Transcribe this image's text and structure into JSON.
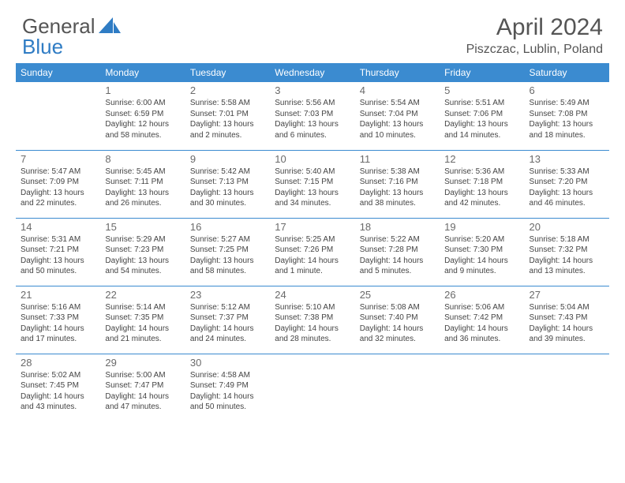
{
  "logo": {
    "part1": "General",
    "part2": "Blue",
    "icon_color": "#2f7cc4"
  },
  "title": "April 2024",
  "location": "Piszczac, Lublin, Poland",
  "colors": {
    "header_bg": "#3b8bd0",
    "header_text": "#ffffff",
    "cell_border": "#3b8bd0",
    "page_bg": "#ffffff",
    "text": "#444444",
    "title_text": "#555555"
  },
  "fonts": {
    "title_size": 30,
    "location_size": 16,
    "dayhead_size": 12,
    "daynum_size": 13,
    "body_size": 10
  },
  "day_headers": [
    "Sunday",
    "Monday",
    "Tuesday",
    "Wednesday",
    "Thursday",
    "Friday",
    "Saturday"
  ],
  "weeks": [
    [
      {
        "n": "",
        "sr": "",
        "ss": "",
        "dl": ""
      },
      {
        "n": "1",
        "sr": "Sunrise: 6:00 AM",
        "ss": "Sunset: 6:59 PM",
        "dl": "Daylight: 12 hours and 58 minutes."
      },
      {
        "n": "2",
        "sr": "Sunrise: 5:58 AM",
        "ss": "Sunset: 7:01 PM",
        "dl": "Daylight: 13 hours and 2 minutes."
      },
      {
        "n": "3",
        "sr": "Sunrise: 5:56 AM",
        "ss": "Sunset: 7:03 PM",
        "dl": "Daylight: 13 hours and 6 minutes."
      },
      {
        "n": "4",
        "sr": "Sunrise: 5:54 AM",
        "ss": "Sunset: 7:04 PM",
        "dl": "Daylight: 13 hours and 10 minutes."
      },
      {
        "n": "5",
        "sr": "Sunrise: 5:51 AM",
        "ss": "Sunset: 7:06 PM",
        "dl": "Daylight: 13 hours and 14 minutes."
      },
      {
        "n": "6",
        "sr": "Sunrise: 5:49 AM",
        "ss": "Sunset: 7:08 PM",
        "dl": "Daylight: 13 hours and 18 minutes."
      }
    ],
    [
      {
        "n": "7",
        "sr": "Sunrise: 5:47 AM",
        "ss": "Sunset: 7:09 PM",
        "dl": "Daylight: 13 hours and 22 minutes."
      },
      {
        "n": "8",
        "sr": "Sunrise: 5:45 AM",
        "ss": "Sunset: 7:11 PM",
        "dl": "Daylight: 13 hours and 26 minutes."
      },
      {
        "n": "9",
        "sr": "Sunrise: 5:42 AM",
        "ss": "Sunset: 7:13 PM",
        "dl": "Daylight: 13 hours and 30 minutes."
      },
      {
        "n": "10",
        "sr": "Sunrise: 5:40 AM",
        "ss": "Sunset: 7:15 PM",
        "dl": "Daylight: 13 hours and 34 minutes."
      },
      {
        "n": "11",
        "sr": "Sunrise: 5:38 AM",
        "ss": "Sunset: 7:16 PM",
        "dl": "Daylight: 13 hours and 38 minutes."
      },
      {
        "n": "12",
        "sr": "Sunrise: 5:36 AM",
        "ss": "Sunset: 7:18 PM",
        "dl": "Daylight: 13 hours and 42 minutes."
      },
      {
        "n": "13",
        "sr": "Sunrise: 5:33 AM",
        "ss": "Sunset: 7:20 PM",
        "dl": "Daylight: 13 hours and 46 minutes."
      }
    ],
    [
      {
        "n": "14",
        "sr": "Sunrise: 5:31 AM",
        "ss": "Sunset: 7:21 PM",
        "dl": "Daylight: 13 hours and 50 minutes."
      },
      {
        "n": "15",
        "sr": "Sunrise: 5:29 AM",
        "ss": "Sunset: 7:23 PM",
        "dl": "Daylight: 13 hours and 54 minutes."
      },
      {
        "n": "16",
        "sr": "Sunrise: 5:27 AM",
        "ss": "Sunset: 7:25 PM",
        "dl": "Daylight: 13 hours and 58 minutes."
      },
      {
        "n": "17",
        "sr": "Sunrise: 5:25 AM",
        "ss": "Sunset: 7:26 PM",
        "dl": "Daylight: 14 hours and 1 minute."
      },
      {
        "n": "18",
        "sr": "Sunrise: 5:22 AM",
        "ss": "Sunset: 7:28 PM",
        "dl": "Daylight: 14 hours and 5 minutes."
      },
      {
        "n": "19",
        "sr": "Sunrise: 5:20 AM",
        "ss": "Sunset: 7:30 PM",
        "dl": "Daylight: 14 hours and 9 minutes."
      },
      {
        "n": "20",
        "sr": "Sunrise: 5:18 AM",
        "ss": "Sunset: 7:32 PM",
        "dl": "Daylight: 14 hours and 13 minutes."
      }
    ],
    [
      {
        "n": "21",
        "sr": "Sunrise: 5:16 AM",
        "ss": "Sunset: 7:33 PM",
        "dl": "Daylight: 14 hours and 17 minutes."
      },
      {
        "n": "22",
        "sr": "Sunrise: 5:14 AM",
        "ss": "Sunset: 7:35 PM",
        "dl": "Daylight: 14 hours and 21 minutes."
      },
      {
        "n": "23",
        "sr": "Sunrise: 5:12 AM",
        "ss": "Sunset: 7:37 PM",
        "dl": "Daylight: 14 hours and 24 minutes."
      },
      {
        "n": "24",
        "sr": "Sunrise: 5:10 AM",
        "ss": "Sunset: 7:38 PM",
        "dl": "Daylight: 14 hours and 28 minutes."
      },
      {
        "n": "25",
        "sr": "Sunrise: 5:08 AM",
        "ss": "Sunset: 7:40 PM",
        "dl": "Daylight: 14 hours and 32 minutes."
      },
      {
        "n": "26",
        "sr": "Sunrise: 5:06 AM",
        "ss": "Sunset: 7:42 PM",
        "dl": "Daylight: 14 hours and 36 minutes."
      },
      {
        "n": "27",
        "sr": "Sunrise: 5:04 AM",
        "ss": "Sunset: 7:43 PM",
        "dl": "Daylight: 14 hours and 39 minutes."
      }
    ],
    [
      {
        "n": "28",
        "sr": "Sunrise: 5:02 AM",
        "ss": "Sunset: 7:45 PM",
        "dl": "Daylight: 14 hours and 43 minutes."
      },
      {
        "n": "29",
        "sr": "Sunrise: 5:00 AM",
        "ss": "Sunset: 7:47 PM",
        "dl": "Daylight: 14 hours and 47 minutes."
      },
      {
        "n": "30",
        "sr": "Sunrise: 4:58 AM",
        "ss": "Sunset: 7:49 PM",
        "dl": "Daylight: 14 hours and 50 minutes."
      },
      {
        "n": "",
        "sr": "",
        "ss": "",
        "dl": ""
      },
      {
        "n": "",
        "sr": "",
        "ss": "",
        "dl": ""
      },
      {
        "n": "",
        "sr": "",
        "ss": "",
        "dl": ""
      },
      {
        "n": "",
        "sr": "",
        "ss": "",
        "dl": ""
      }
    ]
  ]
}
